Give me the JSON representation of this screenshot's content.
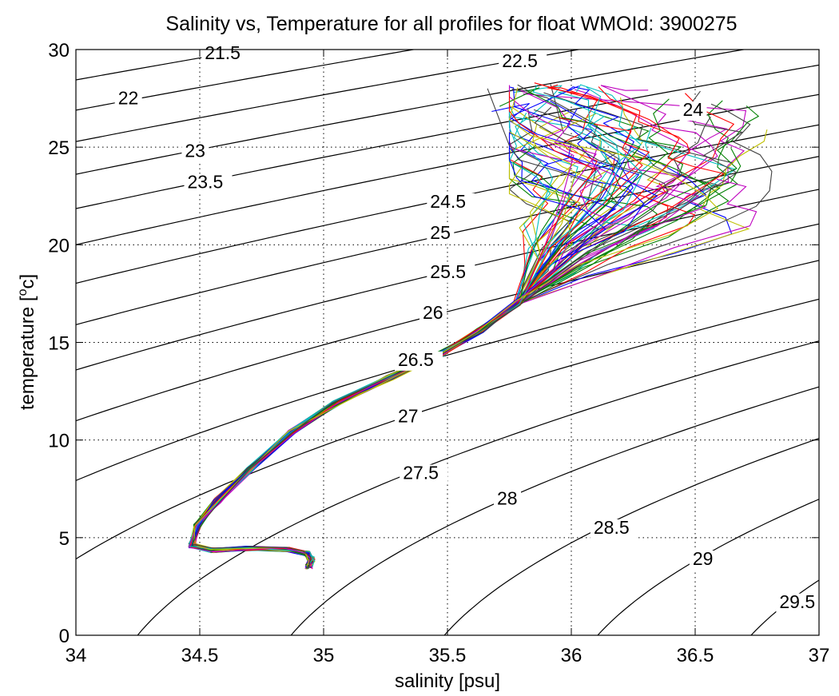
{
  "chart_data": {
    "type": "line",
    "title": "Salinity vs, Temperature for all profiles for float WMOId: 3900275",
    "xlabel": "salinity [psu]",
    "ylabel_main": "temperature [",
    "ylabel_sup": "o",
    "ylabel_end": "c]",
    "xlim": [
      34,
      37
    ],
    "ylim": [
      0,
      30
    ],
    "x_ticks": [
      "34",
      "34.5",
      "35",
      "35.5",
      "36",
      "36.5",
      "37"
    ],
    "y_ticks": [
      "0",
      "5",
      "10",
      "15",
      "20",
      "25",
      "30"
    ],
    "grid": "dotted",
    "density_contours": {
      "values": [
        21.5,
        22,
        22.5,
        23,
        23.5,
        24,
        24.5,
        25,
        25.5,
        26,
        26.5,
        27,
        27.5,
        28,
        28.5,
        29,
        29.5
      ],
      "labels": [
        {
          "text": "21.5",
          "s": 34.52,
          "t": 29.5
        },
        {
          "text": "22",
          "s": 34.17,
          "t": 27.2
        },
        {
          "text": "22.5",
          "s": 35.72,
          "t": 29.1
        },
        {
          "text": "23",
          "s": 34.44,
          "t": 24.5
        },
        {
          "text": "23.5",
          "s": 34.45,
          "t": 22.9
        },
        {
          "text": "24",
          "s": 36.45,
          "t": 26.6
        },
        {
          "text": "24.5",
          "s": 35.43,
          "t": 21.9
        },
        {
          "text": "25",
          "s": 35.43,
          "t": 20.3
        },
        {
          "text": "25.5",
          "s": 35.43,
          "t": 18.3
        },
        {
          "text": "26",
          "s": 35.4,
          "t": 16.2
        },
        {
          "text": "26.5",
          "s": 35.3,
          "t": 13.8
        },
        {
          "text": "27",
          "s": 35.3,
          "t": 10.9
        },
        {
          "text": "27.5",
          "s": 35.32,
          "t": 8.0
        },
        {
          "text": "28",
          "s": 35.7,
          "t": 6.7
        },
        {
          "text": "28.5",
          "s": 36.09,
          "t": 5.2
        },
        {
          "text": "29",
          "s": 36.49,
          "t": 3.6
        },
        {
          "text": "29.5",
          "s": 36.84,
          "t": 1.4
        }
      ]
    },
    "series": [
      {
        "color": "#0000ff"
      },
      {
        "color": "#008000"
      },
      {
        "color": "#ff0000"
      },
      {
        "color": "#00bfbf"
      },
      {
        "color": "#bf00bf"
      },
      {
        "color": "#bfbf00"
      },
      {
        "color": "#404040"
      }
    ],
    "profile_count": 70
  }
}
